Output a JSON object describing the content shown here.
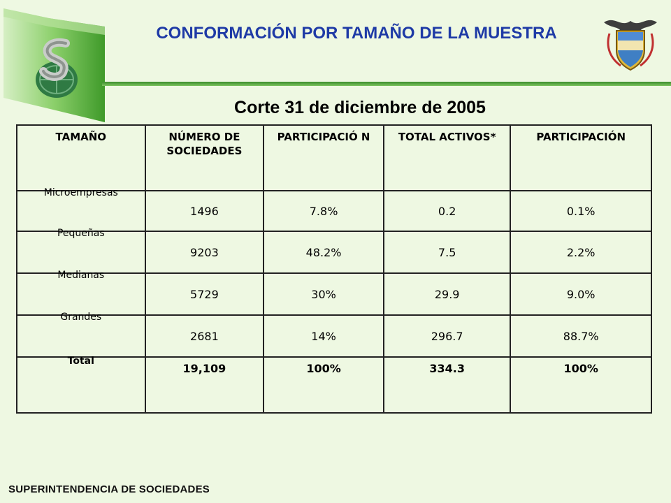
{
  "header": {
    "title": "CONFORMACIÓN POR TAMAÑO DE LA MUESTRA",
    "subtitle": "Corte 31 de diciembre de 2005"
  },
  "table": {
    "headers": [
      "TAMAÑO",
      "NÚMERO DE SOCIEDADES",
      "PARTICIPACIÓ N",
      "TOTAL ACTIVOS*",
      "PARTICIPACIÓN"
    ],
    "rows": [
      [
        "Microempresas",
        "1496",
        "7.8%",
        "0.2",
        "0.1%"
      ],
      [
        "Pequeñas",
        "9203",
        "48.2%",
        "7.5",
        "2.2%"
      ],
      [
        "Medianas",
        "5729",
        "30%",
        "29.9",
        "9.0%"
      ],
      [
        "Grandes",
        "2681",
        "14%",
        "296.7",
        "88.7%"
      ]
    ],
    "total": [
      "Total",
      "19,109",
      "100%",
      "334.3",
      "100%"
    ]
  },
  "footer": {
    "organization": "SUPERINTENDENCIA DE SOCIEDADES"
  },
  "colors": {
    "background": "#eef8e2",
    "title": "#1e3aa6",
    "accent_green": "#3c8c2c"
  },
  "icons": {
    "logo": "superintendencia-logo-icon",
    "seal": "colombia-coat-of-arms-icon"
  }
}
